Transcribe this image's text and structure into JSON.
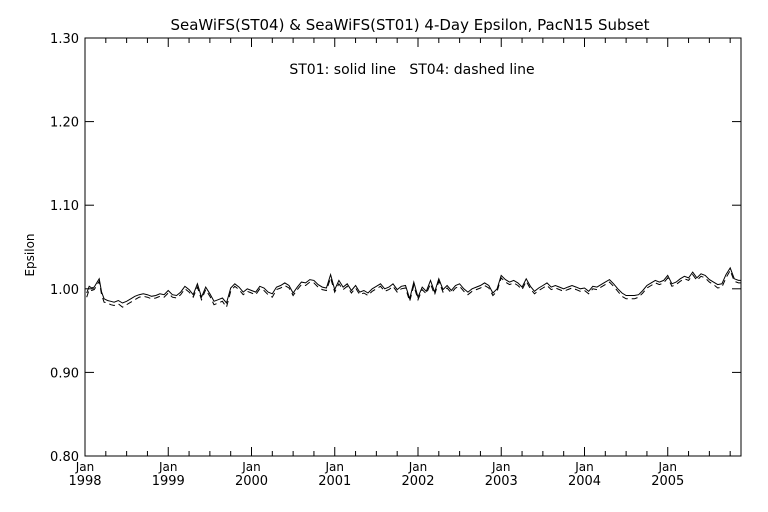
{
  "chart_data": {
    "type": "line",
    "title": "SeaWiFS(ST04) & SeaWiFS(ST01) 4-Day Epsilon, PacN15 Subset",
    "annotation": "ST01: solid line   ST04: dashed line",
    "xlabel": "",
    "ylabel": "Epsilon",
    "ylim": [
      0.8,
      1.3
    ],
    "y_ticks": [
      0.8,
      0.9,
      1.0,
      1.1,
      1.2,
      1.3
    ],
    "y_tick_labels": [
      "0.80",
      "0.90",
      "1.00",
      "1.10",
      "1.20",
      "1.30"
    ],
    "xlim": [
      1998.0,
      2005.88
    ],
    "x_ticks": [
      {
        "value": 1998,
        "month": "Jan",
        "year": "1998"
      },
      {
        "value": 1999,
        "month": "Jan",
        "year": "1999"
      },
      {
        "value": 2000,
        "month": "Jan",
        "year": "2000"
      },
      {
        "value": 2001,
        "month": "Jan",
        "year": "2001"
      },
      {
        "value": 2002,
        "month": "Jan",
        "year": "2002"
      },
      {
        "value": 2003,
        "month": "Jan",
        "year": "2003"
      },
      {
        "value": 2004,
        "month": "Jan",
        "year": "2004"
      },
      {
        "value": 2005,
        "month": "Jan",
        "year": "2005"
      }
    ],
    "grid": false,
    "series": [
      {
        "style": "solid",
        "x": [
          1998.02,
          1998.05,
          1998.08,
          1998.11,
          1998.14,
          1998.17,
          1998.2,
          1998.23,
          1998.27,
          1998.31,
          1998.35,
          1998.4,
          1998.45,
          1998.5,
          1998.55,
          1998.6,
          1998.65,
          1998.7,
          1998.75,
          1998.8,
          1998.85,
          1998.9,
          1998.95,
          1999.0,
          1999.05,
          1999.1,
          1999.15,
          1999.2,
          1999.25,
          1999.3,
          1999.35,
          1999.4,
          1999.45,
          1999.5,
          1999.55,
          1999.6,
          1999.65,
          1999.7,
          1999.75,
          1999.8,
          1999.85,
          1999.9,
          1999.95,
          2000.0,
          2000.05,
          2000.1,
          2000.15,
          2000.2,
          2000.25,
          2000.3,
          2000.35,
          2000.4,
          2000.45,
          2000.5,
          2000.55,
          2000.6,
          2000.65,
          2000.7,
          2000.75,
          2000.8,
          2000.85,
          2000.9,
          2000.95,
          2001.0,
          2001.05,
          2001.1,
          2001.15,
          2001.2,
          2001.25,
          2001.3,
          2001.35,
          2001.4,
          2001.45,
          2001.5,
          2001.55,
          2001.6,
          2001.65,
          2001.7,
          2001.75,
          2001.8,
          2001.85,
          2001.9,
          2001.95,
          2002.0,
          2002.05,
          2002.1,
          2002.15,
          2002.2,
          2002.25,
          2002.3,
          2002.35,
          2002.4,
          2002.45,
          2002.5,
          2002.55,
          2002.6,
          2002.65,
          2002.7,
          2002.75,
          2002.8,
          2002.85,
          2002.9,
          2002.95,
          2003.0,
          2003.05,
          2003.1,
          2003.15,
          2003.2,
          2003.25,
          2003.3,
          2003.35,
          2003.4,
          2003.45,
          2003.5,
          2003.55,
          2003.6,
          2003.65,
          2003.7,
          2003.75,
          2003.8,
          2003.85,
          2003.9,
          2003.95,
          2004.0,
          2004.05,
          2004.1,
          2004.15,
          2004.2,
          2004.25,
          2004.3,
          2004.35,
          2004.4,
          2004.45,
          2004.5,
          2004.55,
          2004.6,
          2004.65,
          2004.7,
          2004.75,
          2004.8,
          2004.85,
          2004.9,
          2004.95,
          2005.0,
          2005.05,
          2005.1,
          2005.15,
          2005.2,
          2005.25,
          2005.3,
          2005.35,
          2005.4,
          2005.45,
          2005.5,
          2005.55,
          2005.6,
          2005.65,
          2005.7,
          2005.75,
          2005.8,
          2005.85,
          2005.88
        ],
        "values": [
          0.995,
          1.003,
          1.001,
          1.002,
          1.007,
          1.012,
          0.996,
          0.988,
          0.986,
          0.985,
          0.984,
          0.986,
          0.983,
          0.985,
          0.988,
          0.991,
          0.993,
          0.994,
          0.993,
          0.991,
          0.992,
          0.994,
          0.993,
          0.998,
          0.993,
          0.992,
          0.996,
          1.003,
          0.999,
          0.993,
          1.006,
          0.99,
          1.002,
          0.994,
          0.985,
          0.987,
          0.989,
          0.983,
          1.001,
          1.006,
          1.002,
          0.996,
          1.0,
          0.998,
          0.996,
          1.003,
          1.001,
          0.996,
          0.994,
          1.002,
          1.004,
          1.007,
          1.004,
          0.995,
          1.002,
          1.008,
          1.007,
          1.011,
          1.01,
          1.005,
          1.002,
          1.001,
          1.017,
          0.999,
          1.01,
          1.002,
          1.006,
          0.998,
          1.004,
          0.996,
          0.998,
          0.995,
          1.0,
          1.003,
          1.006,
          1.0,
          1.002,
          1.006,
          0.999,
          1.003,
          1.004,
          0.988,
          1.008,
          0.99,
          1.002,
          0.997,
          1.01,
          0.996,
          1.012,
          0.999,
          1.004,
          0.998,
          1.004,
          1.006,
          1.0,
          0.996,
          1.0,
          1.002,
          1.004,
          1.007,
          1.004,
          0.995,
          1.0,
          1.016,
          1.011,
          1.008,
          1.01,
          1.007,
          1.002,
          1.012,
          1.003,
          0.997,
          1.001,
          1.004,
          1.007,
          1.002,
          1.004,
          1.002,
          1.0,
          1.002,
          1.004,
          1.002,
          1.0,
          1.001,
          0.997,
          1.003,
          1.002,
          1.005,
          1.008,
          1.011,
          1.006,
          1.0,
          0.995,
          0.992,
          0.992,
          0.992,
          0.993,
          0.998,
          1.004,
          1.007,
          1.01,
          1.008,
          1.01,
          1.016,
          1.006,
          1.008,
          1.012,
          1.015,
          1.013,
          1.02,
          1.013,
          1.018,
          1.016,
          1.011,
          1.008,
          1.005,
          1.006,
          1.017,
          1.025,
          1.012,
          1.01,
          1.01
        ]
      },
      {
        "style": "dashed",
        "x": [
          1998.02,
          1998.05,
          1998.08,
          1998.11,
          1998.14,
          1998.17,
          1998.2,
          1998.23,
          1998.27,
          1998.31,
          1998.35,
          1998.4,
          1998.45,
          1998.5,
          1998.55,
          1998.6,
          1998.65,
          1998.7,
          1998.75,
          1998.8,
          1998.85,
          1998.9,
          1998.95,
          1999.0,
          1999.05,
          1999.1,
          1999.15,
          1999.2,
          1999.25,
          1999.3,
          1999.35,
          1999.4,
          1999.45,
          1999.5,
          1999.55,
          1999.6,
          1999.65,
          1999.7,
          1999.75,
          1999.8,
          1999.85,
          1999.9,
          1999.95,
          2000.0,
          2000.05,
          2000.1,
          2000.15,
          2000.2,
          2000.25,
          2000.3,
          2000.35,
          2000.4,
          2000.45,
          2000.5,
          2000.55,
          2000.6,
          2000.65,
          2000.7,
          2000.75,
          2000.8,
          2000.85,
          2000.9,
          2000.95,
          2001.0,
          2001.05,
          2001.1,
          2001.15,
          2001.2,
          2001.25,
          2001.3,
          2001.35,
          2001.4,
          2001.45,
          2001.5,
          2001.55,
          2001.6,
          2001.65,
          2001.7,
          2001.75,
          2001.8,
          2001.85,
          2001.9,
          2001.95,
          2002.0,
          2002.05,
          2002.1,
          2002.15,
          2002.2,
          2002.25,
          2002.3,
          2002.35,
          2002.4,
          2002.45,
          2002.5,
          2002.55,
          2002.6,
          2002.65,
          2002.7,
          2002.75,
          2002.8,
          2002.85,
          2002.9,
          2002.95,
          2003.0,
          2003.05,
          2003.1,
          2003.15,
          2003.2,
          2003.25,
          2003.3,
          2003.35,
          2003.4,
          2003.45,
          2003.5,
          2003.55,
          2003.6,
          2003.65,
          2003.7,
          2003.75,
          2003.8,
          2003.85,
          2003.9,
          2003.95,
          2004.0,
          2004.05,
          2004.1,
          2004.15,
          2004.2,
          2004.25,
          2004.3,
          2004.35,
          2004.4,
          2004.45,
          2004.5,
          2004.55,
          2004.6,
          2004.65,
          2004.7,
          2004.75,
          2004.8,
          2004.85,
          2004.9,
          2004.95,
          2005.0,
          2005.05,
          2005.1,
          2005.15,
          2005.2,
          2005.25,
          2005.3,
          2005.35,
          2005.4,
          2005.45,
          2005.5,
          2005.55,
          2005.6,
          2005.65,
          2005.7,
          2005.75,
          2005.8,
          2005.85,
          2005.88
        ],
        "values": [
          0.99,
          0.999,
          0.998,
          0.999,
          1.004,
          1.009,
          0.993,
          0.984,
          0.983,
          0.981,
          0.98,
          0.982,
          0.978,
          0.981,
          0.984,
          0.987,
          0.99,
          0.991,
          0.99,
          0.988,
          0.989,
          0.991,
          0.99,
          0.995,
          0.99,
          0.989,
          0.993,
          1.0,
          0.996,
          0.99,
          1.002,
          0.987,
          0.999,
          0.991,
          0.981,
          0.983,
          0.985,
          0.978,
          0.997,
          1.003,
          0.999,
          0.993,
          0.997,
          0.995,
          0.993,
          1.0,
          0.998,
          0.993,
          0.99,
          0.999,
          1.001,
          1.004,
          1.001,
          0.992,
          0.999,
          1.005,
          1.004,
          1.008,
          1.007,
          1.002,
          0.999,
          0.998,
          1.013,
          0.996,
          1.006,
          0.999,
          1.003,
          0.995,
          1.001,
          0.993,
          0.995,
          0.992,
          0.997,
          1.0,
          1.003,
          0.997,
          0.999,
          1.003,
          0.996,
          1.0,
          1.001,
          0.985,
          1.004,
          0.987,
          0.999,
          0.994,
          1.006,
          0.993,
          1.009,
          0.996,
          1.001,
          0.995,
          1.001,
          1.003,
          0.997,
          0.993,
          0.997,
          0.999,
          1.001,
          1.004,
          1.001,
          0.992,
          0.997,
          1.013,
          1.008,
          1.005,
          1.007,
          1.004,
          0.999,
          1.009,
          1.0,
          0.994,
          0.998,
          1.001,
          1.004,
          0.999,
          1.001,
          0.999,
          0.997,
          0.999,
          1.001,
          0.999,
          0.997,
          0.998,
          0.994,
          1.0,
          0.999,
          1.002,
          1.005,
          1.008,
          1.003,
          0.997,
          0.991,
          0.988,
          0.988,
          0.988,
          0.99,
          0.995,
          1.001,
          1.004,
          1.007,
          1.005,
          1.007,
          1.013,
          1.003,
          1.005,
          1.009,
          1.012,
          1.01,
          1.017,
          1.01,
          1.015,
          1.013,
          1.008,
          1.005,
          1.001,
          1.002,
          1.013,
          1.022,
          1.009,
          1.007,
          1.007
        ]
      }
    ]
  }
}
